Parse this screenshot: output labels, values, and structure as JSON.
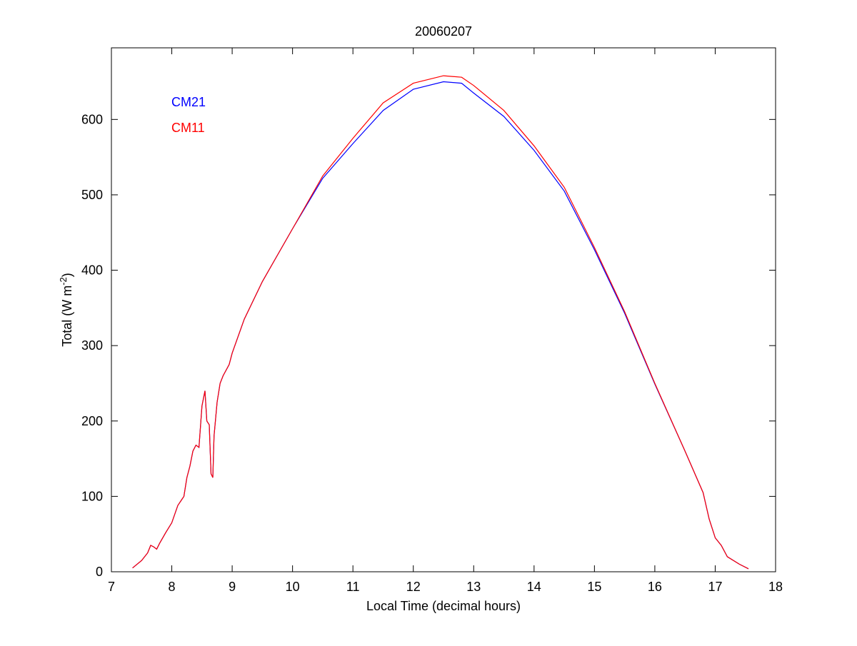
{
  "chart_data": {
    "type": "line",
    "title": "20060207",
    "xlabel": "Local Time (decimal hours)",
    "ylabel": "Total (W m",
    "ylabel_superscript": "-2",
    "ylabel_close": ")",
    "xlim": [
      7,
      18
    ],
    "ylim": [
      0,
      695
    ],
    "xticks": [
      7,
      8,
      9,
      10,
      11,
      12,
      13,
      14,
      15,
      16,
      17,
      18
    ],
    "yticks": [
      0,
      100,
      200,
      300,
      400,
      500,
      600
    ],
    "grid": false,
    "legend_placement": "top-left",
    "x": [
      7.35,
      7.5,
      7.6,
      7.65,
      7.7,
      7.75,
      7.8,
      7.9,
      8.0,
      8.1,
      8.2,
      8.25,
      8.3,
      8.35,
      8.4,
      8.45,
      8.5,
      8.55,
      8.58,
      8.62,
      8.65,
      8.68,
      8.7,
      8.75,
      8.8,
      8.85,
      8.95,
      9.0,
      9.2,
      9.5,
      10.0,
      10.5,
      11.0,
      11.5,
      12.0,
      12.5,
      12.8,
      13.0,
      13.5,
      14.0,
      14.5,
      15.0,
      15.5,
      16.0,
      16.5,
      16.8,
      16.9,
      17.0,
      17.1,
      17.2,
      17.4,
      17.55
    ],
    "series": [
      {
        "name": "CM21",
        "color": "#0000ff",
        "values": [
          5,
          15,
          25,
          35,
          33,
          30,
          38,
          52,
          65,
          88,
          100,
          125,
          140,
          160,
          168,
          165,
          220,
          240,
          200,
          195,
          130,
          125,
          180,
          225,
          250,
          260,
          275,
          290,
          335,
          385,
          455,
          522,
          568,
          612,
          640,
          650,
          648,
          635,
          604,
          559,
          505,
          427,
          343,
          249,
          160,
          105,
          70,
          45,
          35,
          20,
          10,
          4
        ]
      },
      {
        "name": "CM11",
        "color": "#ff0000",
        "values": [
          5,
          15,
          25,
          35,
          33,
          30,
          38,
          52,
          65,
          88,
          100,
          125,
          140,
          160,
          168,
          165,
          220,
          240,
          200,
          195,
          130,
          125,
          180,
          225,
          250,
          260,
          275,
          290,
          335,
          385,
          455,
          525,
          575,
          622,
          648,
          658,
          656,
          645,
          612,
          565,
          510,
          430,
          345,
          250,
          160,
          105,
          70,
          45,
          35,
          20,
          10,
          4
        ]
      }
    ]
  }
}
